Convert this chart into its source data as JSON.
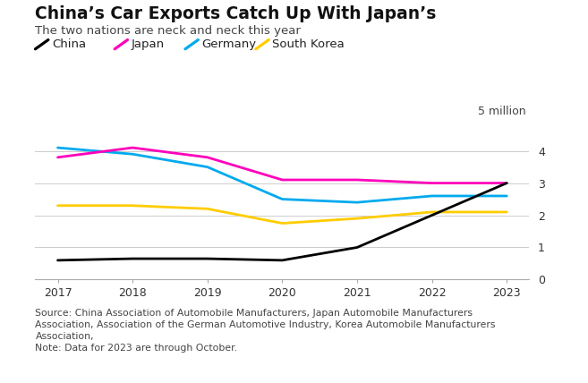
{
  "title": "China’s Car Exports Catch Up With Japan’s",
  "subtitle": "The two nations are neck and neck this year",
  "source_note": "Source: China Association of Automobile Manufacturers, Japan Automobile Manufacturers\nAssociation, Association of the German Automotive Industry, Korea Automobile Manufacturers\nAssociation,\nNote: Data for 2023 are through October.",
  "years": [
    2017,
    2018,
    2019,
    2020,
    2021,
    2022,
    2023
  ],
  "china": [
    0.6,
    0.65,
    0.65,
    0.6,
    1.0,
    2.0,
    3.0
  ],
  "japan": [
    3.8,
    4.1,
    3.8,
    3.1,
    3.1,
    3.0,
    3.0
  ],
  "germany": [
    4.1,
    3.9,
    3.5,
    2.5,
    2.4,
    2.6,
    2.6
  ],
  "south_korea": [
    2.3,
    2.3,
    2.2,
    1.75,
    1.9,
    2.1,
    2.1
  ],
  "colors": {
    "china": "#000000",
    "japan": "#ff00bb",
    "germany": "#00aaee",
    "south_korea": "#ffcc00"
  },
  "ylabel_text": "5 million",
  "ylim": [
    0,
    5
  ],
  "yticks": [
    0,
    1,
    2,
    3,
    4
  ],
  "bg_color": "#ffffff",
  "line_width": 2.0,
  "title_fontsize": 13.5,
  "subtitle_fontsize": 9.5,
  "legend_fontsize": 9.5,
  "tick_fontsize": 9,
  "source_fontsize": 7.8
}
